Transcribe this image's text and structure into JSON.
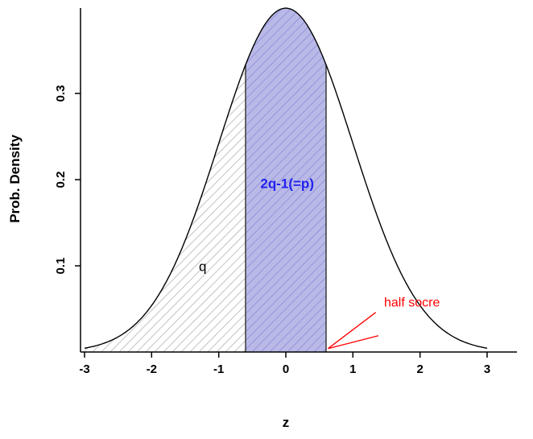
{
  "chart_data": {
    "type": "area",
    "title": "",
    "xlabel": "z",
    "ylabel": "Prob. Density",
    "xlim": [
      -3,
      3
    ],
    "ylim": [
      0,
      0.4
    ],
    "grid": false,
    "legend": "none",
    "distribution": "standard normal density",
    "x_tick_values": [
      -3,
      -2,
      -1,
      0,
      1,
      2,
      3
    ],
    "x_tick_labels": [
      "-3",
      "-2",
      "-1",
      "0",
      "1",
      "2",
      "3"
    ],
    "y_tick_values": [
      0.1,
      0.2,
      0.3
    ],
    "y_tick_labels": [
      "0.1",
      "0.2",
      "0.3"
    ],
    "curve_points": {
      "z": [
        -3,
        -2.75,
        -2.5,
        -2.25,
        -2,
        -1.75,
        -1.5,
        -1.25,
        -1,
        -0.75,
        -0.5,
        -0.25,
        0,
        0.25,
        0.5,
        0.75,
        1,
        1.25,
        1.5,
        1.75,
        2,
        2.25,
        2.5,
        2.75,
        3
      ],
      "density": [
        0.0044,
        0.0091,
        0.0175,
        0.0317,
        0.054,
        0.0862,
        0.1295,
        0.1826,
        0.242,
        0.3011,
        0.3521,
        0.3867,
        0.3989,
        0.3867,
        0.3521,
        0.3011,
        0.242,
        0.1826,
        0.1295,
        0.0862,
        0.054,
        0.0317,
        0.0175,
        0.0091,
        0.0044
      ]
    },
    "curve_color": "#000000",
    "regions": [
      {
        "id": "q",
        "from": -3,
        "to": -0.6,
        "fill": "none",
        "hatch": "#c2c2c2",
        "label": "q",
        "label_color": "#000000",
        "label_bold": false,
        "label_at": {
          "z": -1.24,
          "y": 0.094
        }
      },
      {
        "id": "p",
        "from": -0.6,
        "to": 0.6,
        "fill": "#b9b9e8",
        "hatch": "#9595d8",
        "label": "2q-1(=p)",
        "label_color": "#2222ee",
        "label_bold": true,
        "label_at": {
          "z": 0.02,
          "y": 0.19
        }
      }
    ],
    "boundary_lines": {
      "z": [
        -0.6,
        0.6
      ],
      "color": "#3a3a3a"
    },
    "annotation": {
      "text": "half socre",
      "color": "#ff0000",
      "text_at": {
        "z": 1.88,
        "y": 0.053
      },
      "pointer_lines": [
        {
          "x1": 1.34,
          "y1": 0.046,
          "x2": 0.63,
          "y2": 0.004
        },
        {
          "x1": 1.38,
          "y1": 0.019,
          "x2": 0.63,
          "y2": 0.004
        }
      ]
    }
  }
}
